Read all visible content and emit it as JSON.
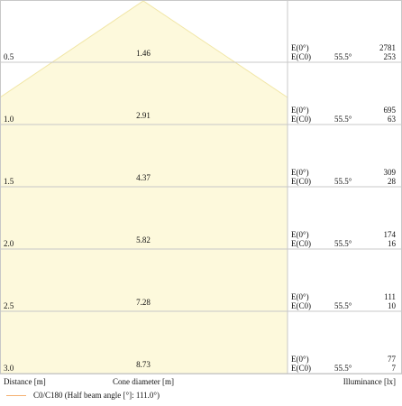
{
  "chart_data": {
    "type": "table",
    "rows": [
      {
        "distance": "0.5",
        "diameter": "1.46",
        "e0_label": "E(0°)",
        "ec0_label": "E(C0)",
        "angle": "55.5°",
        "e0": "2781",
        "ec0": "253"
      },
      {
        "distance": "1.0",
        "diameter": "2.91",
        "e0_label": "E(0°)",
        "ec0_label": "E(C0)",
        "angle": "55.5°",
        "e0": "695",
        "ec0": "63"
      },
      {
        "distance": "1.5",
        "diameter": "4.37",
        "e0_label": "E(0°)",
        "ec0_label": "E(C0)",
        "angle": "55.5°",
        "e0": "309",
        "ec0": "28"
      },
      {
        "distance": "2.0",
        "diameter": "5.82",
        "e0_label": "E(0°)",
        "ec0_label": "E(C0)",
        "angle": "55.5°",
        "e0": "174",
        "ec0": "16"
      },
      {
        "distance": "2.5",
        "diameter": "7.28",
        "e0_label": "E(0°)",
        "ec0_label": "E(C0)",
        "angle": "55.5°",
        "e0": "111",
        "ec0": "10"
      },
      {
        "distance": "3.0",
        "diameter": "8.73",
        "e0_label": "E(0°)",
        "ec0_label": "E(C0)",
        "angle": "55.5°",
        "e0": "77",
        "ec0": "7"
      }
    ],
    "footer": {
      "distance": "Distance [m]",
      "diameter": "Cone diameter [m]",
      "illuminance": "Illuminance [lx]"
    },
    "legend": "C0/C180 (Half beam angle [°]: 111.0°)",
    "colors": {
      "cone_fill": "#fdf9dc",
      "cone_edge": "#f1e6a6",
      "grid": "#c8c8c8",
      "legend_line": "#f5b070"
    }
  }
}
